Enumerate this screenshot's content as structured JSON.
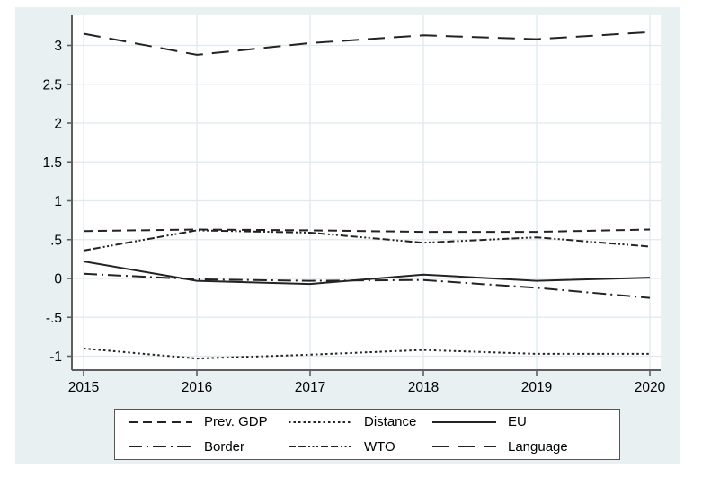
{
  "chart_data": {
    "type": "line",
    "x": [
      2015,
      2016,
      2017,
      2018,
      2019,
      2020
    ],
    "series": [
      {
        "name": "Prev. GDP",
        "style": "dash",
        "values": [
          0.61,
          0.63,
          0.62,
          0.6,
          0.6,
          0.63
        ]
      },
      {
        "name": "Distance",
        "style": "dot",
        "values": [
          -0.9,
          -1.03,
          -0.98,
          -0.92,
          -0.97,
          -0.97
        ]
      },
      {
        "name": "EU",
        "style": "solid",
        "values": [
          0.22,
          -0.03,
          -0.07,
          0.05,
          -0.03,
          0.01
        ]
      },
      {
        "name": "Border",
        "style": "dash-dot",
        "values": [
          0.06,
          -0.01,
          -0.03,
          -0.02,
          -0.12,
          -0.25
        ]
      },
      {
        "name": "WTO",
        "style": "dash-dot-dot",
        "values": [
          0.36,
          0.62,
          0.59,
          0.46,
          0.53,
          0.41
        ]
      },
      {
        "name": "Language",
        "style": "longdash",
        "values": [
          3.15,
          2.88,
          3.03,
          3.13,
          3.08,
          3.17
        ]
      }
    ],
    "title": "",
    "xlabel": "",
    "ylabel": "",
    "ylim": [
      -1.2,
      3.4
    ],
    "yticks": [
      3,
      2.5,
      2,
      1.5,
      1,
      0.5,
      0,
      -0.5,
      -1
    ],
    "ytick_labels": [
      "3",
      "2.5",
      "2",
      "1.5",
      "1",
      ".5",
      "0",
      "-.5",
      "-1"
    ],
    "xticks": [
      2015,
      2016,
      2017,
      2018,
      2019,
      2020
    ],
    "xtick_labels": [
      "2015",
      "2016",
      "2017",
      "2018",
      "2019",
      "2020"
    ],
    "grid": true,
    "legend_position": "bottom"
  },
  "colors": {
    "panel_background": "#e9f0f2",
    "plot_background": "#ffffff",
    "gridline": "#dfe9ee",
    "axis": "#5e5e5e",
    "line": "#232323",
    "text": "#000000",
    "legend_border": "#555555",
    "legend_background": "#ffffff"
  }
}
